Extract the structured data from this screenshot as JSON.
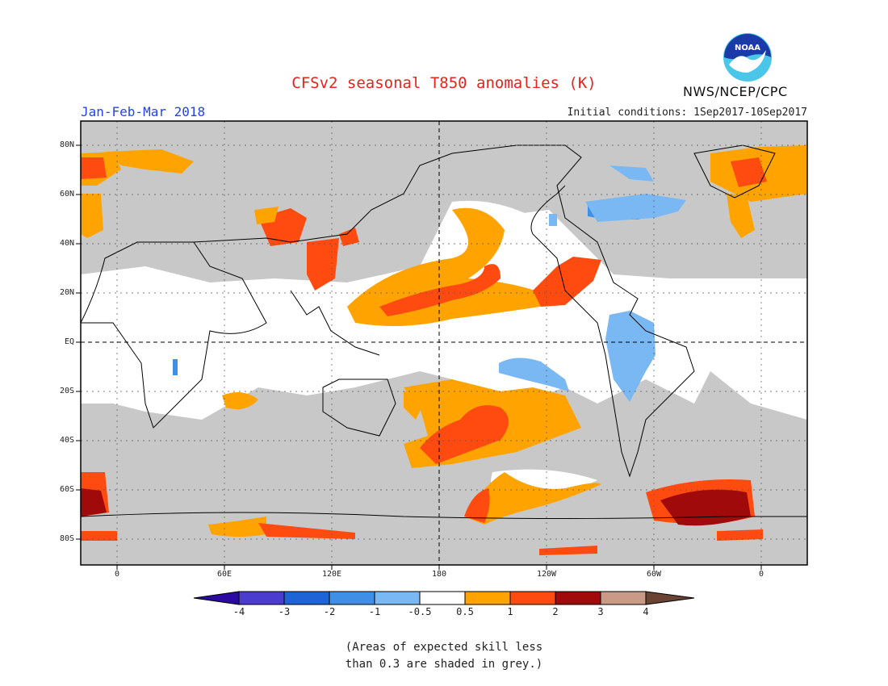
{
  "title": "CFSv2 seasonal T850 anomalies (K)",
  "season": "Jan-Feb-Mar 2018",
  "initial_conditions": "Initial conditions: 1Sep2017-10Sep2017",
  "agency": "NWS/NCEP/CPC",
  "logo_text": "NOAA",
  "lat_labels": [
    "80N",
    "60N",
    "40N",
    "20N",
    "EQ",
    "20S",
    "40S",
    "60S",
    "80S"
  ],
  "lon_labels": [
    "0",
    "60E",
    "120E",
    "180",
    "120W",
    "60W",
    "0"
  ],
  "colorbar": {
    "labels": [
      "-4",
      "-3",
      "-2",
      "-1",
      "-0.5",
      "0.5",
      "1",
      "2",
      "3",
      "4"
    ],
    "colors": [
      "#2a0aa0",
      "#4a3ccc",
      "#1f64d6",
      "#3f8fe6",
      "#7ab8f3",
      "#ffffff",
      "#ffa300",
      "#ff4a10",
      "#a00a0a",
      "#c99a86",
      "#6b4332"
    ]
  },
  "map_colors": {
    "grey": "#c8c8c8",
    "ocean_white": "#ffffff",
    "orange": "#ffa300",
    "red": "#ff4a10",
    "darkred": "#a00a0a",
    "lightblue": "#7ab8f3",
    "blue": "#3f8fe6"
  },
  "footnote": {
    "line1": "(Areas of expected skill less",
    "line2": "than 0.3 are shaded in grey.)"
  }
}
